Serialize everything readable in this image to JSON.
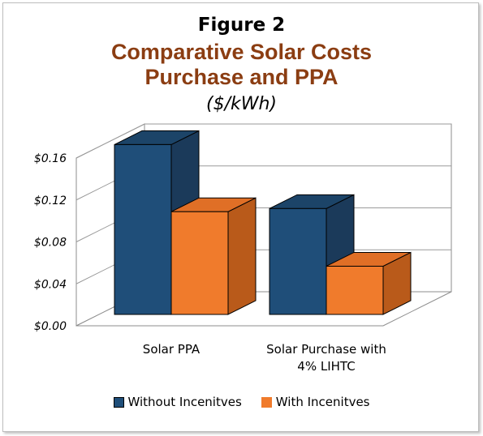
{
  "figure_label": "Figure 2",
  "chart_data": {
    "type": "bar",
    "title": "Comparative Solar Costs",
    "subtitle": "Purchase and PPA",
    "units": "($/kWh)",
    "categories": [
      "Solar PPA",
      "Solar Purchase with 4% LIHTC"
    ],
    "category_lines": [
      [
        "Solar PPA"
      ],
      [
        "Solar Purchase with",
        "4% LIHTC"
      ]
    ],
    "series": [
      {
        "name": "Without Incenitves",
        "values": [
          0.162,
          0.101
        ],
        "color": "#1f4e79"
      },
      {
        "name": "With Incenitves",
        "values": [
          0.098,
          0.046
        ],
        "color": "#f07b2c"
      }
    ],
    "y_ticks": [
      "$0.00",
      "$0.04",
      "$0.08",
      "$0.12",
      "$0.16"
    ],
    "ylim": [
      0,
      0.16
    ],
    "grid": true,
    "legend_position": "bottom"
  }
}
